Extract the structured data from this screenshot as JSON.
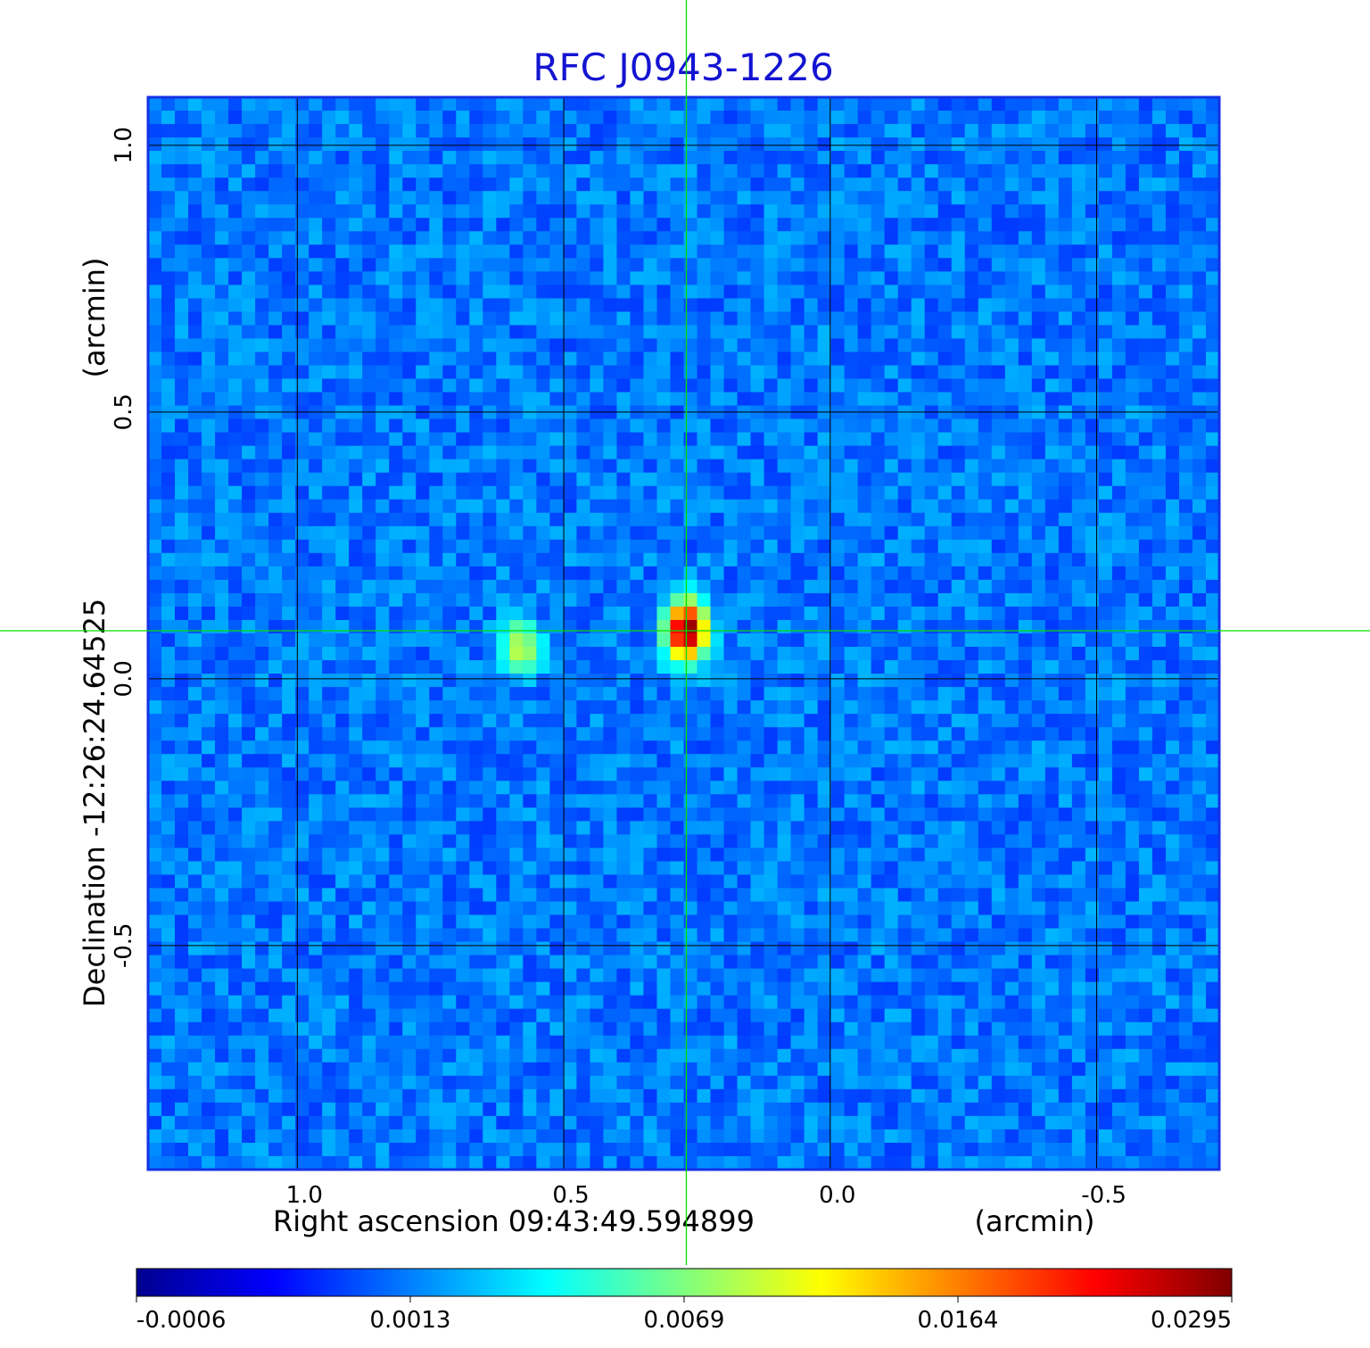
{
  "chart_data": {
    "type": "heatmap",
    "title": "RFC J0943-1226",
    "xlabel": "Right ascension  09:43:49.594899",
    "xunit": "(arcmin)",
    "ylabel": "Declination  -12:26:24.64525",
    "yunit": "(arcmin)",
    "x_reversed": true,
    "xlim": [
      1.28,
      -0.73
    ],
    "ylim": [
      -0.92,
      1.09
    ],
    "x_ticks": [
      {
        "value": 1.0,
        "label": "1.0"
      },
      {
        "value": 0.5,
        "label": "0.5"
      },
      {
        "value": 0.0,
        "label": "0.0"
      },
      {
        "value": -0.5,
        "label": "-0.5"
      }
    ],
    "y_ticks": [
      {
        "value": 1.0,
        "label": "1.0"
      },
      {
        "value": 0.5,
        "label": "0.5"
      },
      {
        "value": 0.0,
        "label": "0.0"
      },
      {
        "value": -0.5,
        "label": "-0.5"
      }
    ],
    "grid": true,
    "crosshair": {
      "x": 0.27,
      "y": 0.09,
      "color": "#00e000"
    },
    "colormap": "jet",
    "colorbar": {
      "position": "bottom",
      "ticks": [
        {
          "fraction": 0.0,
          "label": "-0.0006"
        },
        {
          "fraction": 0.25,
          "label": "0.0013"
        },
        {
          "fraction": 0.5,
          "label": "0.0069"
        },
        {
          "fraction": 0.75,
          "label": "0.0164"
        },
        {
          "fraction": 1.0,
          "label": "0.0295"
        }
      ]
    },
    "sources": [
      {
        "x": 0.27,
        "y": 0.09,
        "peak": 0.0295
      },
      {
        "x": 0.58,
        "y": 0.06,
        "peak": 0.0069
      }
    ],
    "noise_level": 0.0006
  },
  "colors": {
    "title": "#1414d2",
    "axis_frame": "#1432e6",
    "grid": "#000000",
    "crosshair": "#00e000"
  }
}
